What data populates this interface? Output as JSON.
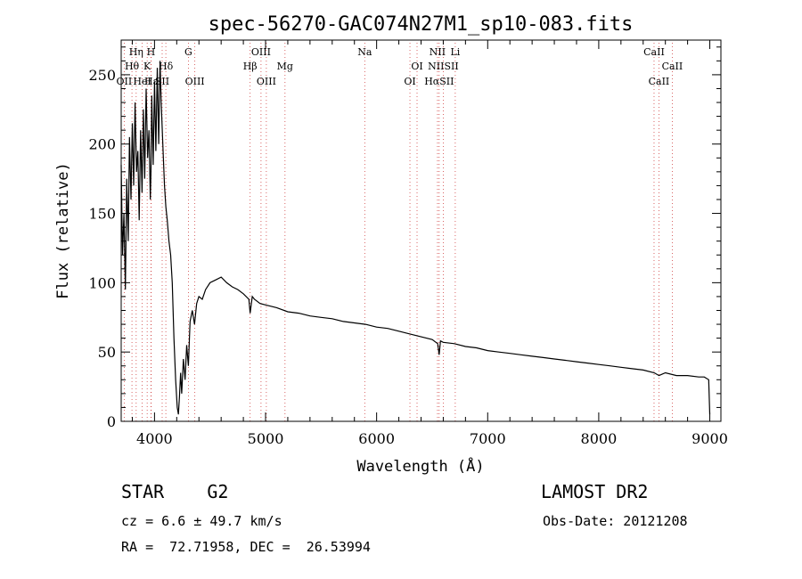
{
  "chart_data": {
    "type": "line",
    "title": "spec-56270-GAC074N27M1_sp10-083.fits",
    "xlabel": "Wavelength (Å)",
    "ylabel": "Flux (relative)",
    "xlim": [
      3700,
      9100
    ],
    "ylim": [
      0,
      275
    ],
    "x_ticks": [
      4000,
      5000,
      6000,
      7000,
      8000,
      9000
    ],
    "y_ticks": [
      0,
      50,
      100,
      150,
      200,
      250
    ],
    "grid": false,
    "series": [
      {
        "x": [
          3700,
          3712,
          3725,
          3738,
          3750,
          3763,
          3775,
          3788,
          3800,
          3812,
          3825,
          3838,
          3850,
          3862,
          3875,
          3888,
          3900,
          3912,
          3925,
          3938,
          3950,
          3962,
          3968,
          3975,
          3988,
          4000,
          4012,
          4025,
          4038,
          4050,
          4060,
          4075,
          4090,
          4102,
          4115,
          4130,
          4145,
          4160,
          4175,
          4190,
          4205,
          4215,
          4225,
          4235,
          4245,
          4260,
          4275,
          4290,
          4305,
          4320,
          4340,
          4360,
          4380,
          4400,
          4430,
          4460,
          4500,
          4550,
          4600,
          4650,
          4700,
          4750,
          4800,
          4850,
          4861,
          4880,
          4900,
          4950,
          5000,
          5100,
          5200,
          5300,
          5400,
          5500,
          5600,
          5700,
          5800,
          5900,
          6000,
          6100,
          6200,
          6300,
          6400,
          6500,
          6550,
          6563,
          6575,
          6600,
          6700,
          6800,
          6900,
          7000,
          7100,
          7200,
          7300,
          7400,
          7500,
          7600,
          7700,
          7800,
          7900,
          8000,
          8100,
          8200,
          8300,
          8400,
          8500,
          8542,
          8600,
          8700,
          8800,
          8900,
          8950,
          8990,
          9000
        ],
        "y": [
          185,
          120,
          150,
          95,
          175,
          130,
          205,
          160,
          215,
          170,
          230,
          180,
          195,
          145,
          210,
          165,
          225,
          175,
          240,
          190,
          210,
          160,
          180,
          235,
          185,
          245,
          195,
          255,
          200,
          260,
          230,
          200,
          170,
          155,
          145,
          130,
          120,
          100,
          60,
          30,
          10,
          5,
          18,
          35,
          20,
          45,
          30,
          55,
          40,
          72,
          80,
          70,
          85,
          90,
          88,
          95,
          100,
          102,
          104,
          100,
          97,
          95,
          92,
          88,
          78,
          90,
          88,
          85,
          84,
          82,
          79,
          78,
          76,
          75,
          74,
          72,
          71,
          70,
          68,
          67,
          65,
          63,
          61,
          59,
          56,
          48,
          58,
          57,
          56,
          54,
          53,
          51,
          50,
          49,
          48,
          47,
          46,
          45,
          44,
          43,
          42,
          41,
          40,
          39,
          38,
          37,
          35,
          33,
          35,
          33,
          33,
          32,
          32,
          30,
          5
        ]
      }
    ],
    "spectral_lines": [
      {
        "name": "Hη",
        "x": 3835,
        "row": 1
      },
      {
        "name": "H",
        "x": 3968,
        "row": 1
      },
      {
        "name": "G",
        "x": 4305,
        "row": 1
      },
      {
        "name": "OIII",
        "x": 4959,
        "row": 1
      },
      {
        "name": "Na",
        "x": 5893,
        "row": 1
      },
      {
        "name": "NII",
        "x": 6548,
        "row": 1
      },
      {
        "name": "Li",
        "x": 6708,
        "row": 1
      },
      {
        "name": "CaII",
        "x": 8498,
        "row": 1
      },
      {
        "name": "Hθ",
        "x": 3797,
        "row": 2
      },
      {
        "name": "K",
        "x": 3934,
        "row": 2
      },
      {
        "name": "Hδ",
        "x": 4102,
        "row": 2
      },
      {
        "name": "Hβ",
        "x": 4861,
        "row": 2
      },
      {
        "name": "Mg",
        "x": 5175,
        "row": 2
      },
      {
        "name": "OI",
        "x": 6364,
        "row": 2
      },
      {
        "name": "NIISII",
        "x": 6600,
        "row": 2
      },
      {
        "name": "CaII",
        "x": 8662,
        "row": 2
      },
      {
        "name": "OII",
        "x": 3727,
        "row": 3
      },
      {
        "name": "HeI",
        "x": 3889,
        "row": 3
      },
      {
        "name": "Hε",
        "x": 3970,
        "row": 3
      },
      {
        "name": "SII",
        "x": 4069,
        "row": 3
      },
      {
        "name": "OIII",
        "x": 4363,
        "row": 3
      },
      {
        "name": "OIII",
        "x": 5007,
        "row": 3
      },
      {
        "name": "OI",
        "x": 6300,
        "row": 3
      },
      {
        "name": "HαSII",
        "x": 6563,
        "row": 3
      },
      {
        "name": "CaII",
        "x": 8542,
        "row": 3
      }
    ],
    "line_marker_color": "#d04040"
  },
  "info": {
    "object": "STAR    G2",
    "survey": "LAMOST DR2",
    "redshift": "cz = 6.6 ± 49.7 km/s",
    "obs_date": "Obs-Date: 20121208",
    "coords": "RA =  72.71958, DEC =  26.53994"
  }
}
